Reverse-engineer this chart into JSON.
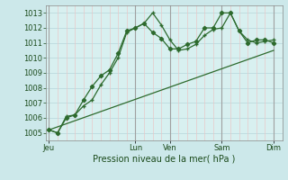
{
  "bg_color": "#cce8ea",
  "plot_bg_color": "#d8f0f0",
  "grid_h_color": "#c0dde0",
  "grid_v_minor_color": "#e8c8c8",
  "grid_v_major_color": "#a0a0a0",
  "line_color": "#2d6a2d",
  "xlabel": "Pression niveau de la mer( hPa )",
  "ylim": [
    1004.5,
    1013.5
  ],
  "yticks": [
    1005,
    1006,
    1007,
    1008,
    1009,
    1010,
    1011,
    1012,
    1013
  ],
  "x_day_labels": [
    "Jeu",
    "Lun",
    "Ven",
    "Sam",
    "Dim"
  ],
  "x_day_positions": [
    0,
    60,
    84,
    120,
    156
  ],
  "xlim": [
    -2,
    162
  ],
  "series1_x": [
    0,
    6,
    12,
    18,
    24,
    30,
    36,
    42,
    48,
    54,
    60,
    66,
    72,
    78,
    84,
    90,
    96,
    102,
    108,
    114,
    120,
    126,
    132,
    138,
    144,
    150,
    156
  ],
  "series1_y": [
    1005.2,
    1005.0,
    1006.0,
    1006.2,
    1007.2,
    1008.1,
    1008.8,
    1009.2,
    1010.3,
    1011.8,
    1012.0,
    1012.3,
    1011.7,
    1011.3,
    1010.6,
    1010.6,
    1010.9,
    1011.1,
    1012.0,
    1012.0,
    1013.0,
    1013.0,
    1011.8,
    1011.0,
    1011.2,
    1011.2,
    1011.0
  ],
  "series2_x": [
    0,
    6,
    12,
    18,
    24,
    30,
    36,
    42,
    48,
    54,
    60,
    66,
    72,
    78,
    84,
    90,
    96,
    102,
    108,
    114,
    120,
    126,
    132,
    138,
    144,
    150,
    156
  ],
  "series2_y": [
    1005.2,
    1005.0,
    1006.1,
    1006.2,
    1006.8,
    1007.2,
    1008.2,
    1009.0,
    1010.0,
    1011.7,
    1012.0,
    1012.3,
    1013.0,
    1012.2,
    1011.2,
    1010.5,
    1010.6,
    1010.9,
    1011.5,
    1011.9,
    1012.0,
    1013.0,
    1011.8,
    1011.2,
    1011.0,
    1011.1,
    1011.2
  ],
  "series3_x": [
    0,
    156
  ],
  "series3_y": [
    1005.2,
    1010.5
  ]
}
